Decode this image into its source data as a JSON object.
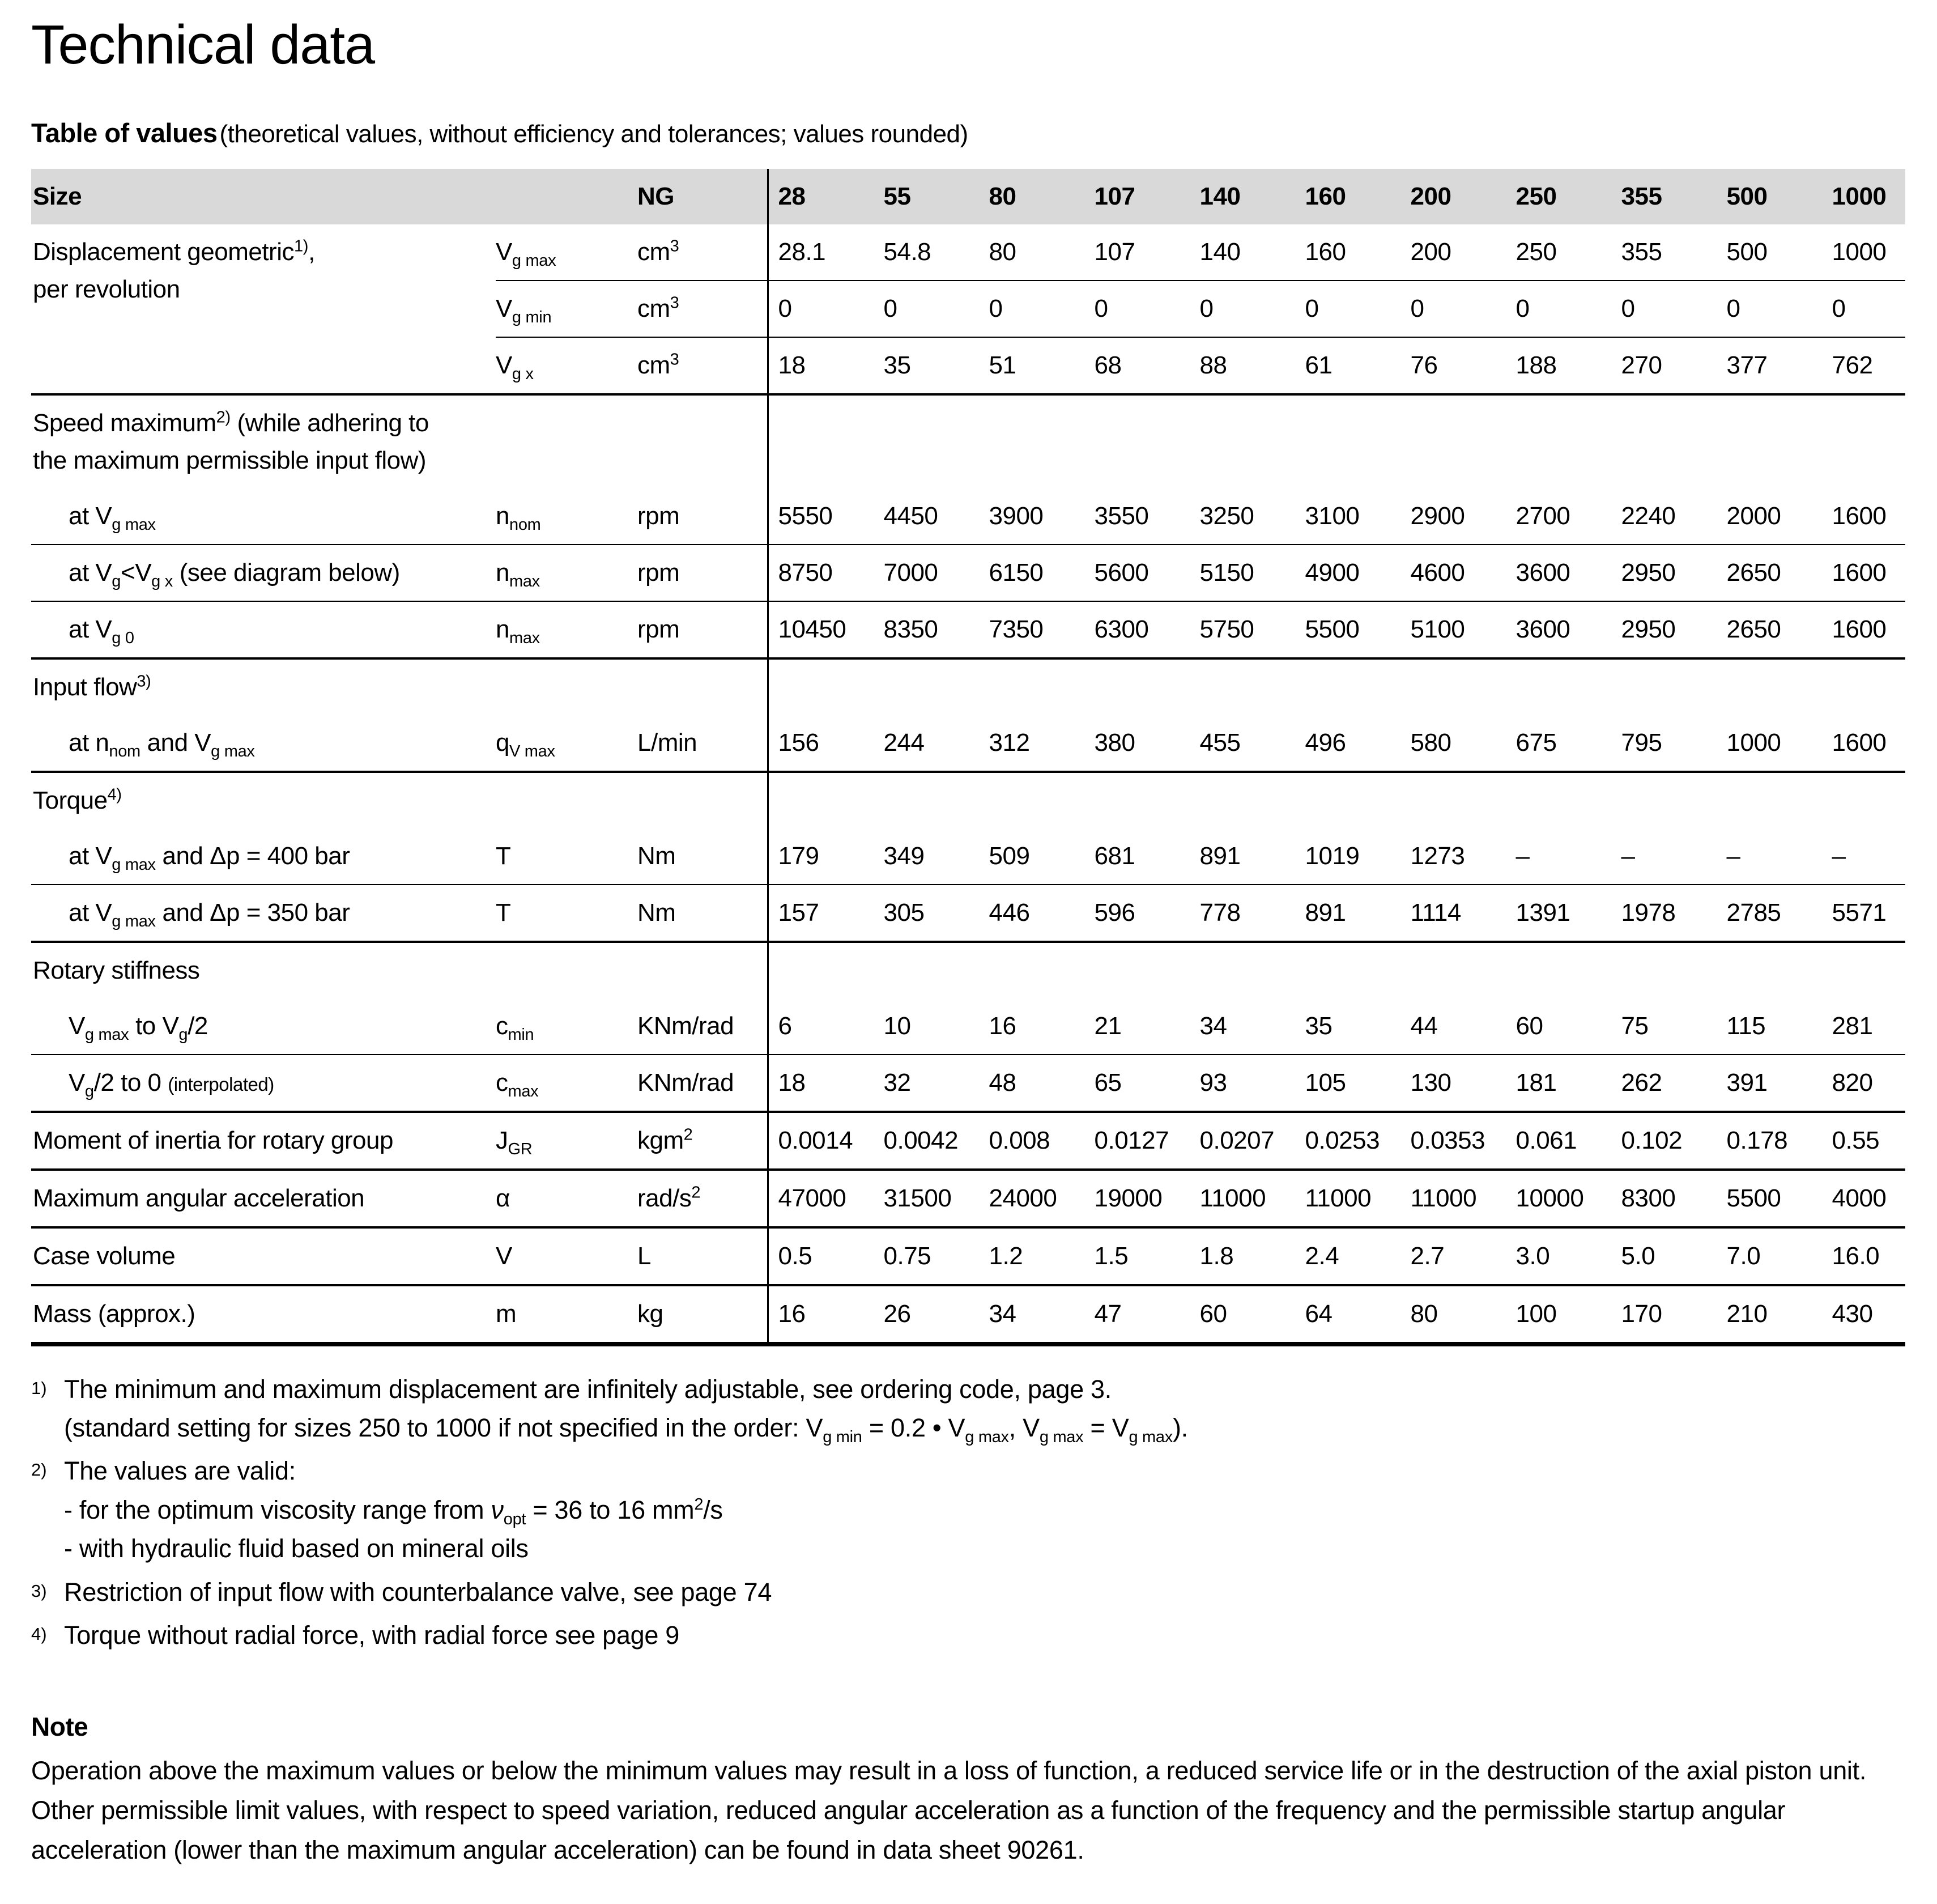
{
  "meta": {
    "header_bg_color": "#d9d9d9",
    "text_color": "#000000"
  },
  "page": {
    "title": "Technical data",
    "section_heading": "Table of values",
    "section_heading_note": "(theoretical values, without efficiency and tolerances; values rounded)"
  },
  "table": {
    "header_label": "Size",
    "header_unit": "NG",
    "sizes": [
      "28",
      "55",
      "80",
      "107",
      "140",
      "160",
      "200",
      "250",
      "355",
      "500",
      "1000"
    ],
    "rows": [
      {
        "label": "Displacement geometric<sup>1)</sup>,<br>per revolution",
        "symbol": "V<sub>g max</sub>",
        "unit": "cm<sup>3</sup>",
        "values": [
          "28.1",
          "54.8",
          "80",
          "107",
          "140",
          "160",
          "200",
          "250",
          "355",
          "500",
          "1000"
        ]
      },
      {
        "symbol": "V<sub>g min</sub>",
        "unit": "cm<sup>3</sup>",
        "values": [
          "0",
          "0",
          "0",
          "0",
          "0",
          "0",
          "0",
          "0",
          "0",
          "0",
          "0"
        ]
      },
      {
        "symbol": "V<sub>g x</sub>",
        "unit": "cm<sup>3</sup>",
        "values": [
          "18",
          "35",
          "51",
          "68",
          "88",
          "61",
          "76",
          "188",
          "270",
          "377",
          "762"
        ]
      },
      {
        "section": "Speed maximum<sup>2)</sup> (while adhering to<br>the maximum permissible input flow)"
      },
      {
        "label": "at V<sub>g max</sub>",
        "symbol": "n<sub>nom</sub>",
        "unit": "rpm",
        "values": [
          "5550",
          "4450",
          "3900",
          "3550",
          "3250",
          "3100",
          "2900",
          "2700",
          "2240",
          "2000",
          "1600"
        ]
      },
      {
        "label": "at V<sub>g</sub>&lt;V<sub>g x</sub> (see diagram below)",
        "symbol": "n<sub>max</sub>",
        "unit": "rpm",
        "values": [
          "8750",
          "7000",
          "6150",
          "5600",
          "5150",
          "4900",
          "4600",
          "3600",
          "2950",
          "2650",
          "1600"
        ]
      },
      {
        "label": "at V<sub>g 0</sub>",
        "symbol": "n<sub>max</sub>",
        "unit": "rpm",
        "values": [
          "10450",
          "8350",
          "7350",
          "6300",
          "5750",
          "5500",
          "5100",
          "3600",
          "2950",
          "2650",
          "1600"
        ]
      },
      {
        "section": "Input flow<sup>3)</sup>"
      },
      {
        "label": "at n<sub>nom</sub> and V<sub>g max</sub>",
        "symbol": "q<sub>V max</sub>",
        "unit": "L/min",
        "values": [
          "156",
          "244",
          "312",
          "380",
          "455",
          "496",
          "580",
          "675",
          "795",
          "1000",
          "1600"
        ]
      },
      {
        "section": "Torque<sup>4)</sup>"
      },
      {
        "label": "at V<sub>g max</sub> and Δp = 400 bar",
        "symbol": "T",
        "unit": "Nm",
        "values": [
          "179",
          "349",
          "509",
          "681",
          "891",
          "1019",
          "1273",
          "–",
          "–",
          "–",
          "–"
        ]
      },
      {
        "label": "at V<sub>g max</sub> and Δp = 350 bar",
        "symbol": "T",
        "unit": "Nm",
        "values": [
          "157",
          "305",
          "446",
          "596",
          "778",
          "891",
          "1114",
          "1391",
          "1978",
          "2785",
          "5571"
        ]
      },
      {
        "section": "Rotary stiffness"
      },
      {
        "label": "V<sub>g max</sub> to V<sub>g</sub>/2",
        "symbol": "c<sub>min</sub>",
        "unit": "KNm/rad",
        "values": [
          "6",
          "10",
          "16",
          "21",
          "34",
          "35",
          "44",
          "60",
          "75",
          "115",
          "281"
        ]
      },
      {
        "label": "V<sub>g</sub>/2 to 0 <small>(interpolated)</small>",
        "symbol": "c<sub>max</sub>",
        "unit": "KNm/rad",
        "values": [
          "18",
          "32",
          "48",
          "65",
          "93",
          "105",
          "130",
          "181",
          "262",
          "391",
          "820"
        ]
      },
      {
        "label": "Moment of inertia for rotary group",
        "symbol": "J<sub>GR</sub>",
        "unit": "kgm<sup>2</sup>",
        "values": [
          "0.0014",
          "0.0042",
          "0.008",
          "0.0127",
          "0.0207",
          "0.0253",
          "0.0353",
          "0.061",
          "0.102",
          "0.178",
          "0.55"
        ]
      },
      {
        "label": "Maximum angular acceleration",
        "symbol": "α",
        "unit": "rad/s<sup>2</sup>",
        "values": [
          "47000",
          "31500",
          "24000",
          "19000",
          "11000",
          "11000",
          "11000",
          "10000",
          "8300",
          "5500",
          "4000"
        ]
      },
      {
        "label": "Case volume",
        "symbol": "V",
        "unit": "L",
        "values": [
          "0.5",
          "0.75",
          "1.2",
          "1.5",
          "1.8",
          "2.4",
          "2.7",
          "3.0",
          "5.0",
          "7.0",
          "16.0"
        ]
      },
      {
        "label": "Mass (approx.)",
        "symbol": "m",
        "unit": "kg",
        "values": [
          "16",
          "26",
          "34",
          "47",
          "60",
          "64",
          "80",
          "100",
          "170",
          "210",
          "430"
        ]
      }
    ]
  },
  "footnotes": [
    {
      "marker": "1)",
      "html": "The minimum and maximum displacement are infinitely adjustable, see ordering code, page 3.<br>(standard setting for sizes 250 to 1000 if not specified in the order: V<sub>g min</sub> = 0.2 • V<sub>g max</sub>, V<sub>g max</sub> = V<sub>g max</sub>)."
    },
    {
      "marker": "2)",
      "html": "The values are valid:<br>- for the optimum viscosity range from <i>ν</i><sub>opt</sub> = 36 to 16 mm<sup>2</sup>/s<br>- with hydraulic fluid based on mineral oils"
    },
    {
      "marker": "3)",
      "html": "Restriction of input flow with counterbalance valve, see page 74"
    },
    {
      "marker": "4)",
      "html": "Torque without radial force, with radial force see page 9"
    }
  ],
  "note": {
    "heading": "Note",
    "text": "Operation above the maximum values or below the minimum values may result in a loss of function, a reduced service life or in the destruction of the axial piston unit. Other permissible limit values, with respect to speed variation, reduced angular acceleration as a function of the frequency and the permissible startup angular acceleration (lower than the maximum angular acceleration) can be found in data sheet 90261."
  }
}
